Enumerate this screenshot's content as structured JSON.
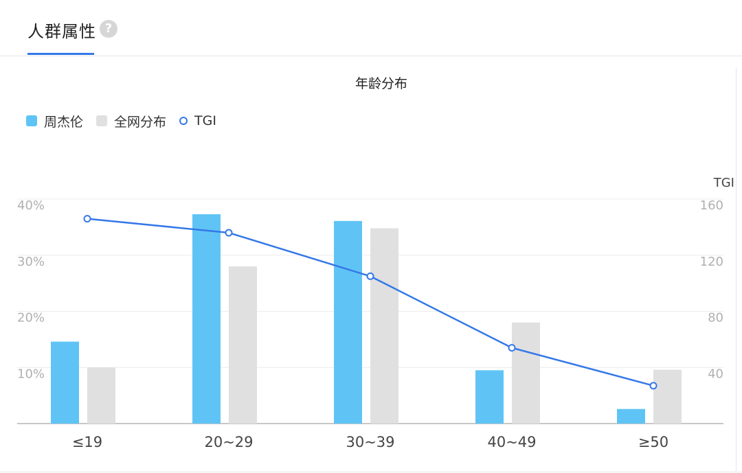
{
  "tab": {
    "title": "人群属性",
    "help_icon": "?"
  },
  "colors": {
    "accent": "#3478e8",
    "bar_series": "#5fc4f5",
    "bar_baseline": "#e0e0e0"
  },
  "chart_data": {
    "type": "bar",
    "title": "年龄分布",
    "categories": [
      "≤19",
      "20~29",
      "30~39",
      "40~49",
      "≥50"
    ],
    "series": [
      {
        "name": "周杰伦",
        "type": "bar",
        "axis": "left",
        "values": [
          14.6,
          37.3,
          36.1,
          9.5,
          2.6
        ]
      },
      {
        "name": "全网分布",
        "type": "bar",
        "axis": "left",
        "values": [
          10.0,
          28.0,
          34.8,
          18.0,
          9.6
        ]
      },
      {
        "name": "TGI",
        "type": "line",
        "axis": "right",
        "values": [
          146,
          136,
          105,
          54,
          27
        ]
      }
    ],
    "y_left": {
      "ticks": [
        "10%",
        "20%",
        "30%",
        "40%"
      ],
      "range": [
        0,
        40
      ]
    },
    "y_right": {
      "label": "TGI",
      "ticks": [
        "40",
        "80",
        "120",
        "160"
      ],
      "range": [
        0,
        160
      ]
    },
    "grid": true,
    "legend_position": "top-left"
  }
}
